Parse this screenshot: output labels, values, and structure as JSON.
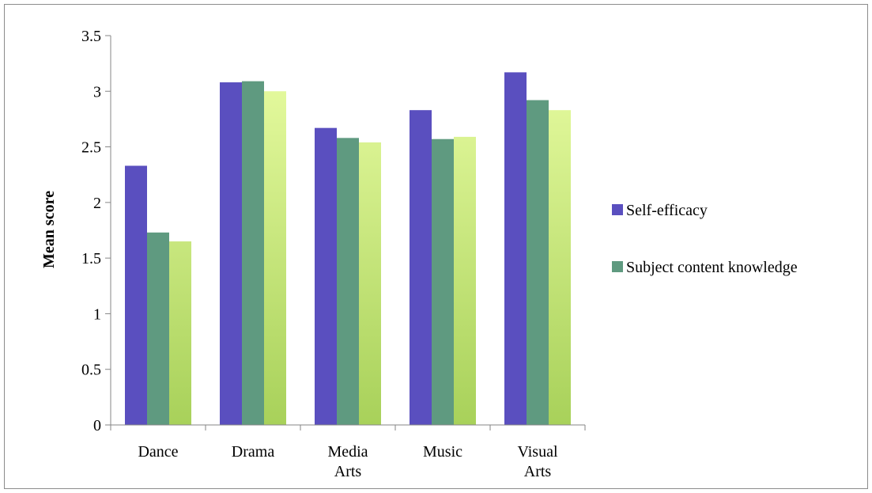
{
  "chart_data": {
    "type": "bar",
    "title": "",
    "xlabel": "",
    "ylabel": "Mean score",
    "ylim": [
      0,
      3.5
    ],
    "yticks": [
      "0",
      "0.5",
      "1",
      "1.5",
      "2",
      "2.5",
      "3",
      "3.5"
    ],
    "categories": [
      [
        "Dance"
      ],
      [
        "Drama"
      ],
      [
        "Media",
        "Arts"
      ],
      [
        "Music"
      ],
      [
        "Visual",
        "Arts"
      ]
    ],
    "series": [
      {
        "name": "Self-efficacy",
        "color": "#5a4fbf",
        "values": [
          2.33,
          3.08,
          2.67,
          2.83,
          3.17
        ]
      },
      {
        "name": "Subject content knowledge",
        "color": "#5f9a80",
        "values": [
          1.73,
          3.09,
          2.58,
          2.57,
          2.92
        ]
      },
      {
        "color": "#a8d15a",
        "color_top": "#ecffa6",
        "values": [
          1.65,
          3.0,
          2.54,
          2.59,
          2.83
        ]
      }
    ],
    "legend": [
      "Self-efficacy",
      "Subject content knowledge"
    ],
    "legend_position": "right",
    "grid": false
  }
}
